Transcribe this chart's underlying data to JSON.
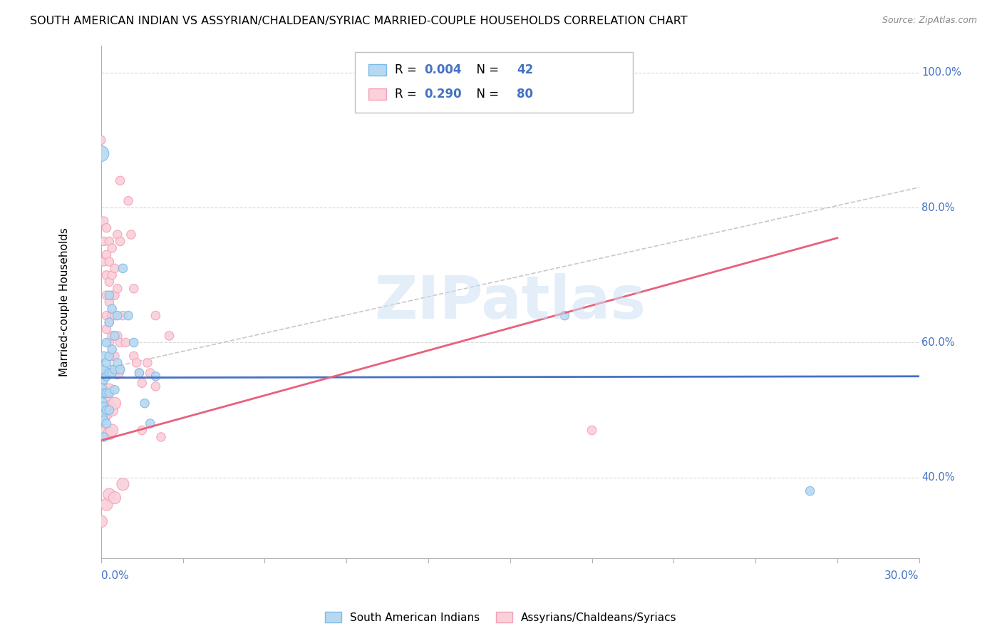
{
  "title": "SOUTH AMERICAN INDIAN VS ASSYRIAN/CHALDEAN/SYRIAC MARRIED-COUPLE HOUSEHOLDS CORRELATION CHART",
  "source": "Source: ZipAtlas.com",
  "ylabel": "Married-couple Households",
  "xmin": 0.0,
  "xmax": 0.3,
  "ymin": 0.28,
  "ymax": 1.04,
  "watermark": "ZIPatlas",
  "blue_color": "#7abbe8",
  "blue_fill": "#b8d8f0",
  "pink_color": "#f4a0b5",
  "pink_fill": "#fad0da",
  "blue_line_color": "#4472c4",
  "pink_line_color": "#e8607a",
  "dashed_line_color": "#c8c8c8",
  "right_label_color": "#4472c4",
  "bottom_label_color": "#4472c4",
  "blue_scatter": [
    [
      0.0,
      0.555
    ],
    [
      0.0,
      0.53
    ],
    [
      0.0,
      0.51
    ],
    [
      0.0,
      0.49
    ],
    [
      0.001,
      0.58
    ],
    [
      0.001,
      0.56
    ],
    [
      0.001,
      0.545
    ],
    [
      0.001,
      0.525
    ],
    [
      0.001,
      0.505
    ],
    [
      0.001,
      0.485
    ],
    [
      0.001,
      0.46
    ],
    [
      0.002,
      0.6
    ],
    [
      0.002,
      0.57
    ],
    [
      0.002,
      0.55
    ],
    [
      0.002,
      0.525
    ],
    [
      0.002,
      0.5
    ],
    [
      0.002,
      0.48
    ],
    [
      0.003,
      0.67
    ],
    [
      0.003,
      0.63
    ],
    [
      0.003,
      0.58
    ],
    [
      0.003,
      0.555
    ],
    [
      0.003,
      0.525
    ],
    [
      0.003,
      0.5
    ],
    [
      0.004,
      0.65
    ],
    [
      0.004,
      0.59
    ],
    [
      0.004,
      0.555
    ],
    [
      0.005,
      0.61
    ],
    [
      0.005,
      0.56
    ],
    [
      0.005,
      0.53
    ],
    [
      0.006,
      0.64
    ],
    [
      0.006,
      0.57
    ],
    [
      0.007,
      0.56
    ],
    [
      0.008,
      0.71
    ],
    [
      0.01,
      0.64
    ],
    [
      0.012,
      0.6
    ],
    [
      0.014,
      0.555
    ],
    [
      0.016,
      0.51
    ],
    [
      0.018,
      0.48
    ],
    [
      0.02,
      0.55
    ],
    [
      0.17,
      0.64
    ],
    [
      0.26,
      0.38
    ],
    [
      0.0,
      0.88
    ]
  ],
  "blue_sizes": [
    150,
    150,
    150,
    150,
    80,
    80,
    80,
    80,
    80,
    80,
    80,
    80,
    80,
    80,
    80,
    80,
    80,
    80,
    80,
    80,
    80,
    80,
    80,
    80,
    80,
    80,
    80,
    80,
    80,
    80,
    80,
    80,
    80,
    80,
    80,
    80,
    80,
    80,
    80,
    80,
    80,
    250
  ],
  "pink_scatter": [
    [
      0.0,
      0.9
    ],
    [
      0.001,
      0.78
    ],
    [
      0.001,
      0.75
    ],
    [
      0.001,
      0.72
    ],
    [
      0.002,
      0.77
    ],
    [
      0.002,
      0.73
    ],
    [
      0.002,
      0.7
    ],
    [
      0.002,
      0.67
    ],
    [
      0.002,
      0.64
    ],
    [
      0.002,
      0.62
    ],
    [
      0.003,
      0.75
    ],
    [
      0.003,
      0.72
    ],
    [
      0.003,
      0.69
    ],
    [
      0.003,
      0.66
    ],
    [
      0.003,
      0.63
    ],
    [
      0.003,
      0.6
    ],
    [
      0.003,
      0.58
    ],
    [
      0.004,
      0.74
    ],
    [
      0.004,
      0.7
    ],
    [
      0.004,
      0.67
    ],
    [
      0.004,
      0.64
    ],
    [
      0.004,
      0.61
    ],
    [
      0.004,
      0.58
    ],
    [
      0.004,
      0.56
    ],
    [
      0.005,
      0.71
    ],
    [
      0.005,
      0.67
    ],
    [
      0.005,
      0.64
    ],
    [
      0.005,
      0.61
    ],
    [
      0.005,
      0.58
    ],
    [
      0.005,
      0.555
    ],
    [
      0.006,
      0.76
    ],
    [
      0.006,
      0.68
    ],
    [
      0.006,
      0.61
    ],
    [
      0.007,
      0.84
    ],
    [
      0.007,
      0.75
    ],
    [
      0.007,
      0.6
    ],
    [
      0.007,
      0.56
    ],
    [
      0.008,
      0.64
    ],
    [
      0.009,
      0.6
    ],
    [
      0.01,
      0.81
    ],
    [
      0.011,
      0.76
    ],
    [
      0.012,
      0.68
    ],
    [
      0.012,
      0.58
    ],
    [
      0.013,
      0.57
    ],
    [
      0.014,
      0.555
    ],
    [
      0.015,
      0.54
    ],
    [
      0.015,
      0.47
    ],
    [
      0.017,
      0.57
    ],
    [
      0.018,
      0.555
    ],
    [
      0.02,
      0.535
    ],
    [
      0.02,
      0.64
    ],
    [
      0.022,
      0.46
    ],
    [
      0.025,
      0.61
    ],
    [
      0.0,
      0.56
    ],
    [
      0.0,
      0.54
    ],
    [
      0.0,
      0.51
    ],
    [
      0.0,
      0.49
    ],
    [
      0.0,
      0.335
    ],
    [
      0.001,
      0.53
    ],
    [
      0.001,
      0.51
    ],
    [
      0.001,
      0.49
    ],
    [
      0.001,
      0.465
    ],
    [
      0.002,
      0.52
    ],
    [
      0.002,
      0.495
    ],
    [
      0.002,
      0.47
    ],
    [
      0.002,
      0.36
    ],
    [
      0.003,
      0.53
    ],
    [
      0.003,
      0.505
    ],
    [
      0.003,
      0.465
    ],
    [
      0.003,
      0.375
    ],
    [
      0.004,
      0.5
    ],
    [
      0.004,
      0.47
    ],
    [
      0.005,
      0.51
    ],
    [
      0.005,
      0.37
    ],
    [
      0.006,
      0.555
    ],
    [
      0.008,
      0.39
    ],
    [
      0.18,
      0.47
    ]
  ],
  "pink_sizes": [
    80,
    80,
    80,
    80,
    80,
    80,
    80,
    80,
    80,
    80,
    80,
    80,
    80,
    80,
    80,
    80,
    80,
    80,
    80,
    80,
    80,
    80,
    80,
    80,
    80,
    80,
    80,
    80,
    80,
    80,
    80,
    80,
    80,
    80,
    80,
    80,
    80,
    80,
    80,
    80,
    80,
    80,
    80,
    80,
    80,
    80,
    80,
    80,
    80,
    80,
    80,
    80,
    80,
    150,
    150,
    150,
    150,
    150,
    150,
    150,
    150,
    150,
    150,
    150,
    150,
    150,
    150,
    150,
    150,
    150,
    150,
    150,
    150,
    150,
    150,
    150,
    80
  ],
  "blue_line_x": [
    0.0,
    0.3
  ],
  "blue_line_y": [
    0.548,
    0.55
  ],
  "pink_line_x": [
    0.0,
    0.27
  ],
  "pink_line_y": [
    0.455,
    0.755
  ],
  "dash_line_x": [
    0.0,
    0.3
  ],
  "dash_line_y": [
    0.56,
    0.83
  ]
}
